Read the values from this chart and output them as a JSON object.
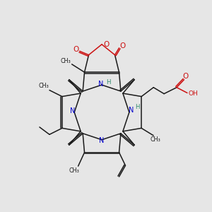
{
  "background_color": "#e6e6e6",
  "fig_size": [
    3.0,
    3.0
  ],
  "dpi": 100,
  "bond_color": "#1a1a1a",
  "nitrogen_color": "#0000cc",
  "oxygen_color": "#cc1111",
  "nh_color": "#2d8a6b",
  "bond_lw": 1.1,
  "dbo": 0.06,
  "xlim": [
    0.5,
    10.5
  ],
  "ylim": [
    0.5,
    10.5
  ]
}
